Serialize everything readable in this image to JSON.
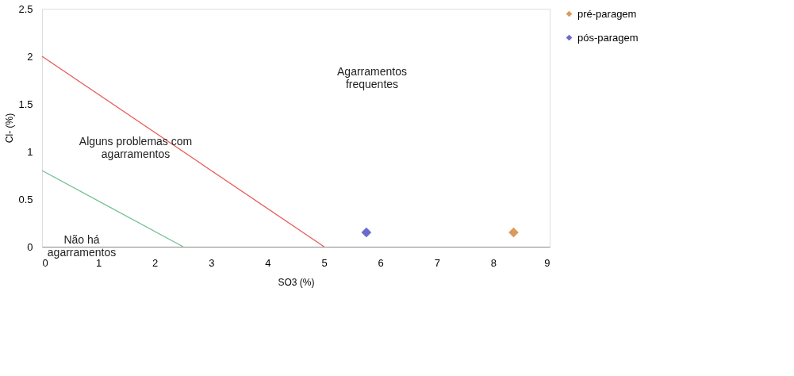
{
  "chart_data": {
    "type": "scatter",
    "xlabel": "SO3 (%)",
    "ylabel": "Cl- (%)",
    "xlim": [
      0,
      9
    ],
    "xticks": [
      0,
      1,
      2,
      3,
      4,
      5,
      6,
      7,
      8,
      9
    ],
    "ylim": [
      0,
      2.5
    ],
    "yticks": [
      0,
      0.5,
      1,
      1.5,
      2,
      2.5
    ],
    "grid": false,
    "legend": "right",
    "marker": "diamond",
    "series": [
      {
        "type": "line",
        "color": "#e8585a",
        "marker": "none",
        "x": [
          0,
          5
        ],
        "values": [
          2,
          0
        ]
      },
      {
        "type": "line",
        "color": "#6fbf8f",
        "marker": "none",
        "x": [
          0,
          2.5
        ],
        "values": [
          0.8,
          0
        ]
      },
      {
        "name": "pré-paragem",
        "color": "#d99a5e",
        "x": [
          8.36
        ],
        "values": [
          0.15
        ]
      },
      {
        "name": "pós-paragem",
        "color": "#6a6ad0",
        "x": [
          5.75
        ],
        "values": [
          0.15
        ]
      }
    ],
    "annotations": [
      "Agarramentos\nfrequentes",
      "Alguns problemas com\nagarramentos",
      "Não há\nagarramentos"
    ]
  }
}
